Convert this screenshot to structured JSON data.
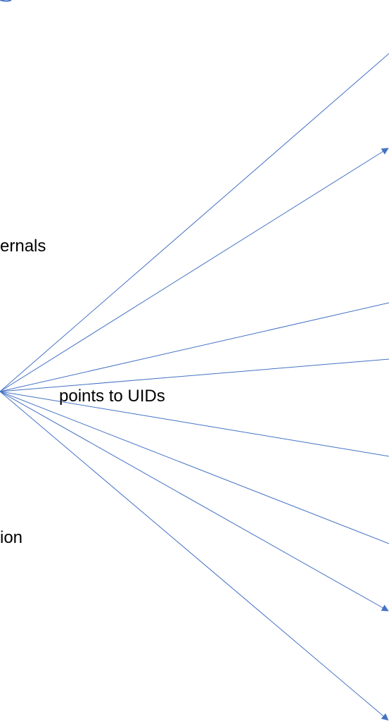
{
  "labels": {
    "internals_fragment": "ernals",
    "points_to_uids": "points to UIDs",
    "ion_fragment": "ion"
  },
  "colors": {
    "line": "#4472C4",
    "text": "#000000",
    "background": "#FFFFFF"
  },
  "connectors": [
    {
      "name": "connector-1",
      "arrowhead": false
    },
    {
      "name": "connector-2",
      "arrowhead": true
    },
    {
      "name": "connector-3",
      "arrowhead": false
    },
    {
      "name": "connector-4",
      "arrowhead": false
    },
    {
      "name": "connector-5",
      "arrowhead": false
    },
    {
      "name": "connector-6",
      "arrowhead": false
    },
    {
      "name": "connector-7",
      "arrowhead": true
    },
    {
      "name": "connector-8",
      "arrowhead": true
    }
  ]
}
